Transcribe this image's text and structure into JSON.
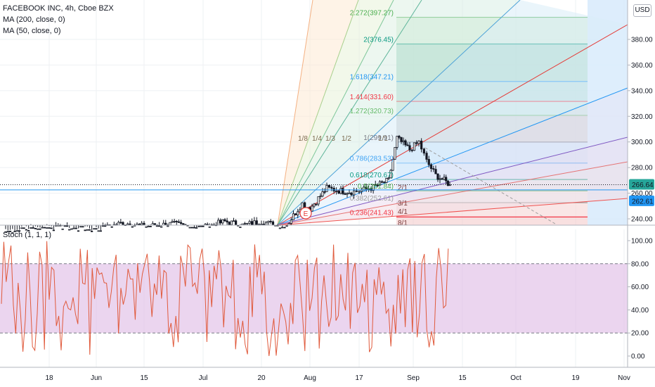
{
  "legend": {
    "symbol": "FACEBOOK INC, 4h, Cboe BZX",
    "ma200": "MA (200, close, 0)",
    "ma50": "MA (50, close, 0)",
    "stoch": "Stoch (1, 1, 1)"
  },
  "currency_button": "USD",
  "event_marker": "E",
  "price_axis": {
    "ticks": [
      "240.00",
      "260.00",
      "280.00",
      "300.00",
      "320.00",
      "340.00",
      "360.00",
      "380.00"
    ],
    "last_price": "266.64",
    "last_price_color": "#26a69a",
    "line_price": "262.61",
    "line_price_color": "#2196f3"
  },
  "stoch_axis": {
    "ticks": [
      "0.00",
      "20.00",
      "40.00",
      "60.00",
      "80.00",
      "100.00"
    ]
  },
  "time_axis": {
    "labels": [
      "18",
      "Jun",
      "15",
      "Jul",
      "20",
      "Aug",
      "17",
      "Sep",
      "15",
      "Oct",
      "19",
      "Nov"
    ]
  },
  "fib_retracement": {
    "levels": [
      {
        "label": "2.272(397.27)",
        "color": "#4caf50"
      },
      {
        "label": "2(376.45)",
        "color": "#089981"
      },
      {
        "label": "1.618(347.21)",
        "color": "#2196f3"
      },
      {
        "label": "1.414(331.60)",
        "color": "#f23645"
      },
      {
        "label": "1.272(320.73)",
        "color": "#66bb6a"
      },
      {
        "label": "1(299.91)",
        "color": "#787b86"
      },
      {
        "label": "0.786(283.53)",
        "color": "#42a5f5"
      },
      {
        "label": "0.618(270.67)",
        "color": "#089981"
      },
      {
        "label": "0.5(261.84)",
        "color": "#4caf50"
      },
      {
        "label": "0.382(252.61)",
        "color": "#9c9c9c"
      },
      {
        "label": "0.236(241.43)",
        "color": "#f23645"
      }
    ]
  },
  "gann_fan": {
    "left_labels": [
      "1/8",
      "1/4",
      "1/3",
      "1/2",
      "1/1"
    ],
    "right_labels": [
      "2/1",
      "3/1",
      "4/1",
      "8/1"
    ]
  },
  "chart_data": [
    {
      "type": "candlestick",
      "title": "FACEBOOK INC, 4h, Cboe BZX",
      "x_axis": "time",
      "ylim": [
        236,
        405
      ],
      "series_summary": {
        "approximate_closes": [
          {
            "x": "May 10",
            "y": 230
          },
          {
            "x": "May 18",
            "y": 233
          },
          {
            "x": "Jun 1",
            "y": 231
          },
          {
            "x": "Jun 8",
            "y": 237
          },
          {
            "x": "Jun 15",
            "y": 234
          },
          {
            "x": "Jun 22",
            "y": 236
          },
          {
            "x": "Jul 1",
            "y": 233
          },
          {
            "x": "Jul 8",
            "y": 238
          },
          {
            "x": "Jul 15",
            "y": 235
          },
          {
            "x": "Jul 20",
            "y": 238
          },
          {
            "x": "Jul 27",
            "y": 233
          },
          {
            "x": "Jul 31",
            "y": 252
          },
          {
            "x": "Aug 3",
            "y": 248
          },
          {
            "x": "Aug 6",
            "y": 264
          },
          {
            "x": "Aug 10",
            "y": 262
          },
          {
            "x": "Aug 14",
            "y": 261
          },
          {
            "x": "Aug 18",
            "y": 262
          },
          {
            "x": "Aug 21",
            "y": 264
          },
          {
            "x": "Aug 25",
            "y": 270
          },
          {
            "x": "Aug 27",
            "y": 303
          },
          {
            "x": "Aug 31",
            "y": 294
          },
          {
            "x": "Sep 2",
            "y": 300
          },
          {
            "x": "Sep 4",
            "y": 285
          },
          {
            "x": "Sep 8",
            "y": 274
          },
          {
            "x": "Sep 10",
            "y": 270
          },
          {
            "x": "Sep 11",
            "y": 266.64
          }
        ],
        "last": 266.64
      },
      "horizontal_line": 262.61
    },
    {
      "type": "line",
      "title": "Stoch (1, 1, 1)",
      "ylim": [
        0,
        100
      ],
      "band": [
        20,
        80
      ],
      "note": "oscillator fluctuates between about 0 and 100 over the full time range"
    }
  ],
  "colors": {
    "candle": "#131722",
    "stoch_line": "#e05a3c",
    "stoch_band": "#e1bee7",
    "grid": "#eef0f3",
    "axis_border": "#b2b5be"
  }
}
